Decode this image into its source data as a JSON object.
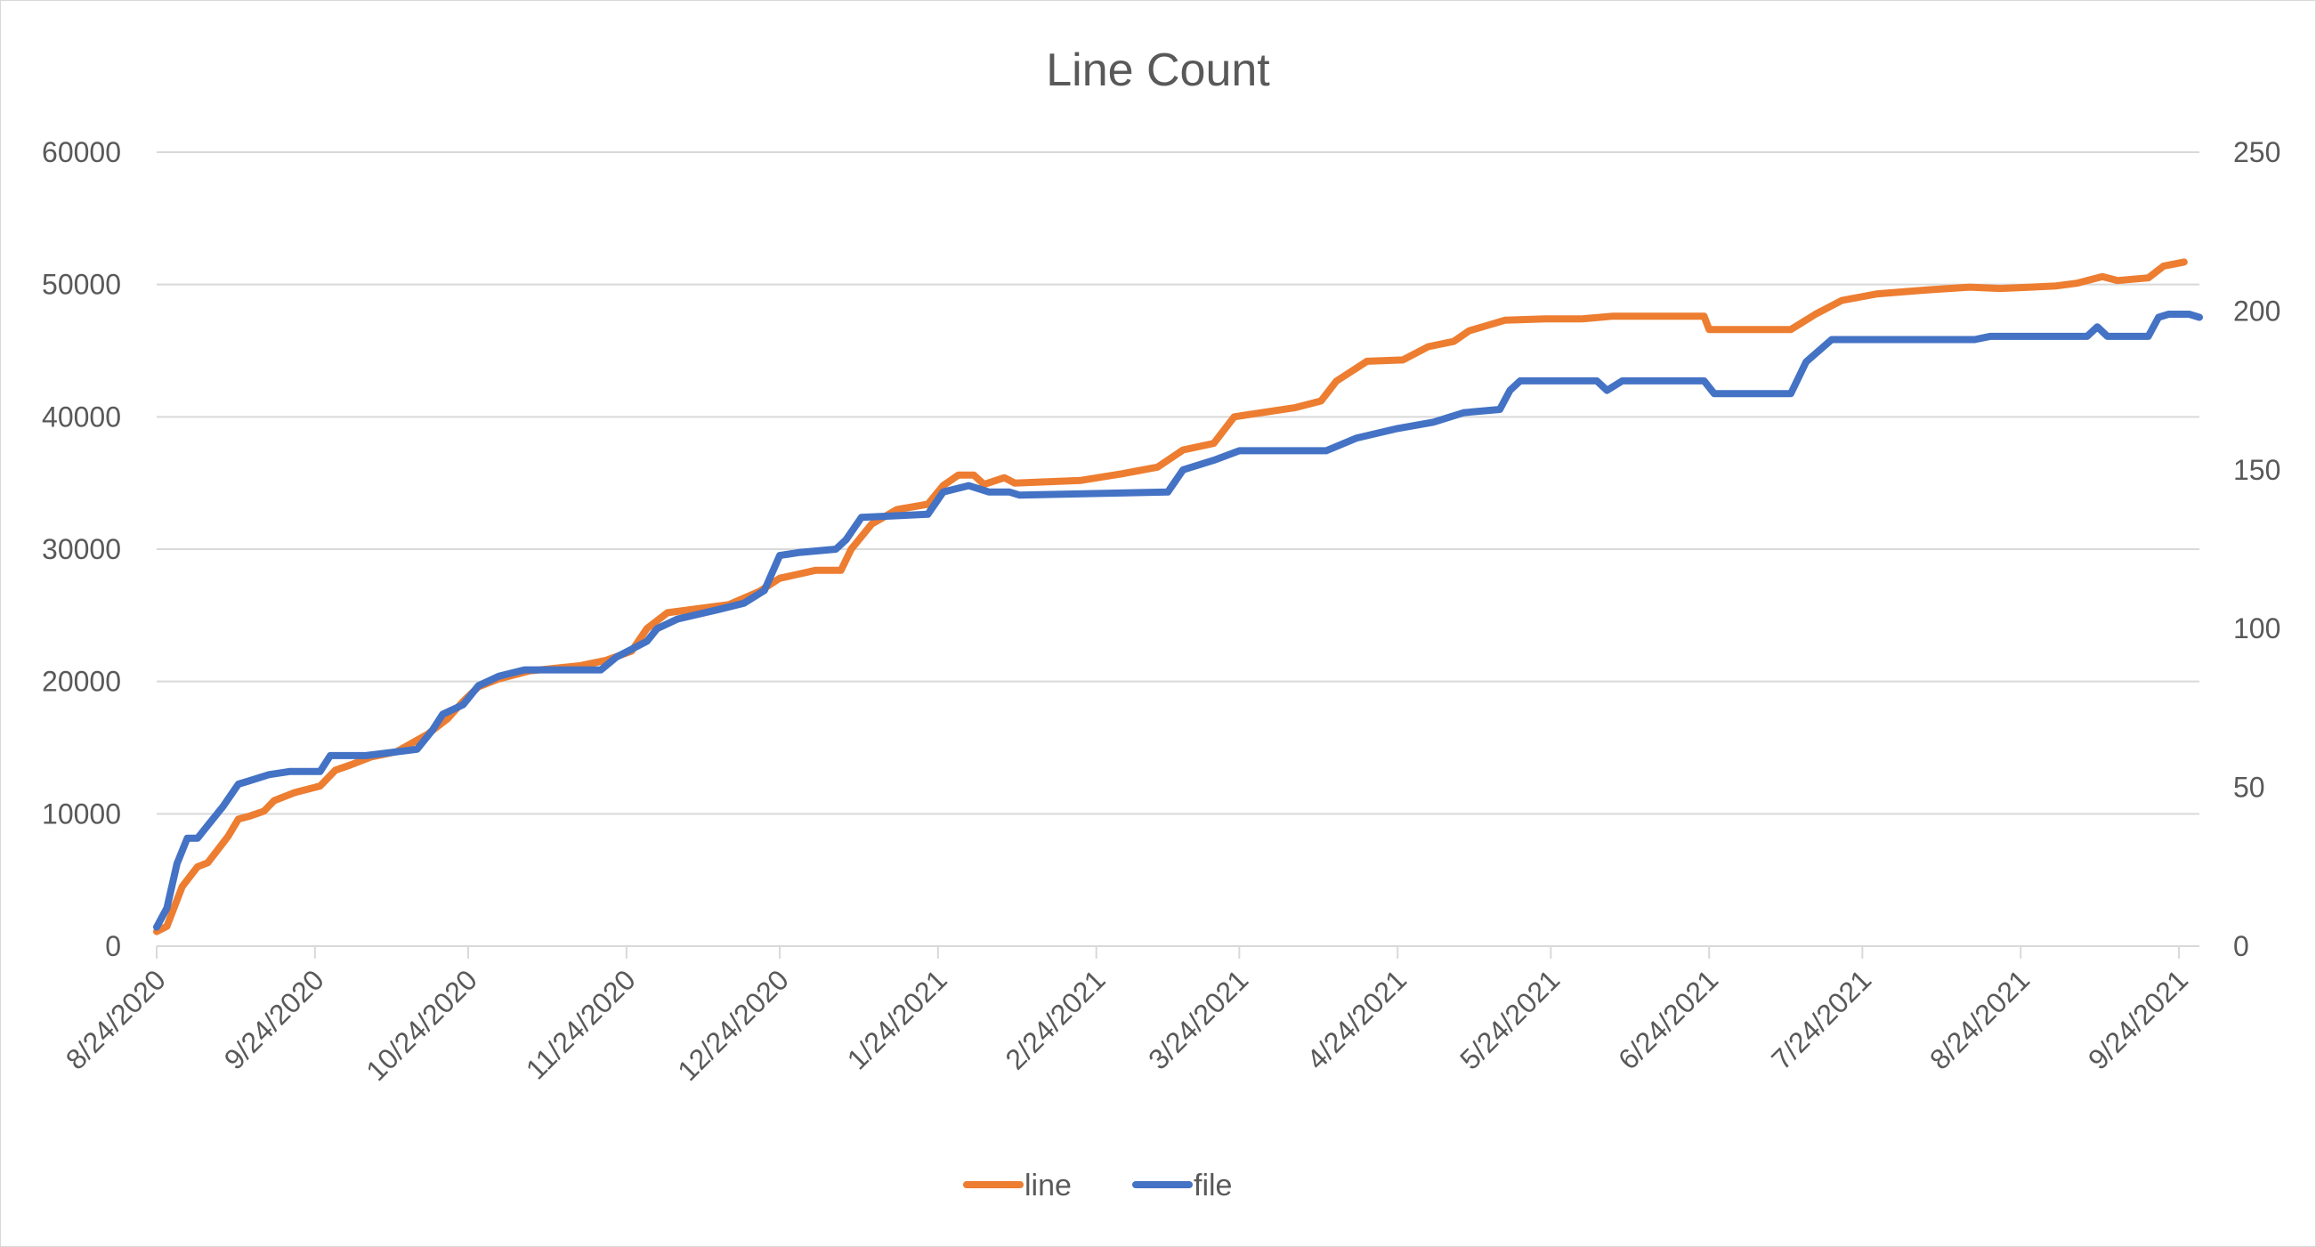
{
  "chart_data": {
    "type": "line",
    "title": "Line Count",
    "xlabel": "",
    "ylabel": "",
    "y2label": "",
    "x_tick_labels": [
      "8/24/2020",
      "9/24/2020",
      "10/24/2020",
      "11/24/2020",
      "12/24/2020",
      "1/24/2021",
      "2/24/2021",
      "3/24/2021",
      "4/24/2021",
      "5/24/2021",
      "6/24/2021",
      "7/24/2021",
      "8/24/2021",
      "9/24/2021"
    ],
    "x_ticks": [
      "2020-08-24",
      "2020-09-24",
      "2020-10-24",
      "2020-11-24",
      "2020-12-24",
      "2021-01-24",
      "2021-02-24",
      "2021-03-24",
      "2021-04-24",
      "2021-05-24",
      "2021-06-24",
      "2021-07-24",
      "2021-08-24",
      "2021-09-24"
    ],
    "xlim": [
      "2020-08-24",
      "2021-09-28"
    ],
    "ylim": [
      0,
      60000
    ],
    "y_ticks": [
      0,
      10000,
      20000,
      30000,
      40000,
      50000,
      60000
    ],
    "y2lim": [
      0,
      250
    ],
    "y2_ticks": [
      0,
      50,
      100,
      150,
      200,
      250
    ],
    "grid": true,
    "legend_position": "bottom",
    "series": [
      {
        "name": "line",
        "axis": "left",
        "color": "#ED7D31",
        "points": [
          [
            "2020-08-24",
            1100
          ],
          [
            "2020-08-26",
            1500
          ],
          [
            "2020-08-29",
            4500
          ],
          [
            "2020-09-01",
            6000
          ],
          [
            "2020-09-03",
            6300
          ],
          [
            "2020-09-07",
            8300
          ],
          [
            "2020-09-09",
            9600
          ],
          [
            "2020-09-11",
            9800
          ],
          [
            "2020-09-14",
            10200
          ],
          [
            "2020-09-16",
            11000
          ],
          [
            "2020-09-20",
            11600
          ],
          [
            "2020-09-25",
            12100
          ],
          [
            "2020-09-28",
            13300
          ],
          [
            "2020-10-01",
            13700
          ],
          [
            "2020-10-05",
            14300
          ],
          [
            "2020-10-10",
            14700
          ],
          [
            "2020-10-16",
            16000
          ],
          [
            "2020-10-20",
            17200
          ],
          [
            "2020-10-23",
            18500
          ],
          [
            "2020-10-26",
            19600
          ],
          [
            "2020-10-30",
            20200
          ],
          [
            "2020-11-05",
            20800
          ],
          [
            "2020-11-15",
            21200
          ],
          [
            "2020-11-20",
            21600
          ],
          [
            "2020-11-25",
            22300
          ],
          [
            "2020-11-28",
            24000
          ],
          [
            "2020-12-02",
            25200
          ],
          [
            "2020-12-06",
            25400
          ],
          [
            "2020-12-14",
            25800
          ],
          [
            "2020-12-20",
            26800
          ],
          [
            "2020-12-24",
            27800
          ],
          [
            "2020-12-31",
            28400
          ],
          [
            "2021-01-05",
            28400
          ],
          [
            "2021-01-07",
            30000
          ],
          [
            "2021-01-11",
            31900
          ],
          [
            "2021-01-16",
            33000
          ],
          [
            "2021-01-22",
            33400
          ],
          [
            "2021-01-25",
            34800
          ],
          [
            "2021-01-28",
            35600
          ],
          [
            "2021-01-31",
            35600
          ],
          [
            "2021-02-02",
            34900
          ],
          [
            "2021-02-06",
            35400
          ],
          [
            "2021-02-08",
            35000
          ],
          [
            "2021-02-21",
            35200
          ],
          [
            "2021-03-01",
            35700
          ],
          [
            "2021-03-08",
            36200
          ],
          [
            "2021-03-13",
            37500
          ],
          [
            "2021-03-19",
            38000
          ],
          [
            "2021-03-23",
            40000
          ],
          [
            "2021-03-28",
            40300
          ],
          [
            "2021-04-04",
            40700
          ],
          [
            "2021-04-09",
            41200
          ],
          [
            "2021-04-12",
            42700
          ],
          [
            "2021-04-18",
            44200
          ],
          [
            "2021-04-25",
            44300
          ],
          [
            "2021-04-30",
            45300
          ],
          [
            "2021-05-05",
            45700
          ],
          [
            "2021-05-08",
            46500
          ],
          [
            "2021-05-15",
            47300
          ],
          [
            "2021-05-23",
            47400
          ],
          [
            "2021-05-30",
            47400
          ],
          [
            "2021-06-05",
            47600
          ],
          [
            "2021-06-23",
            47600
          ],
          [
            "2021-06-24",
            46600
          ],
          [
            "2021-07-10",
            46600
          ],
          [
            "2021-07-15",
            47800
          ],
          [
            "2021-07-20",
            48800
          ],
          [
            "2021-07-27",
            49300
          ],
          [
            "2021-08-06",
            49600
          ],
          [
            "2021-08-14",
            49800
          ],
          [
            "2021-08-20",
            49700
          ],
          [
            "2021-08-26",
            49800
          ],
          [
            "2021-08-31",
            49900
          ],
          [
            "2021-09-04",
            50100
          ],
          [
            "2021-09-09",
            50600
          ],
          [
            "2021-09-12",
            50300
          ],
          [
            "2021-09-18",
            50500
          ],
          [
            "2021-09-21",
            51400
          ],
          [
            "2021-09-25",
            51700
          ]
        ]
      },
      {
        "name": "file",
        "axis": "right",
        "color": "#4472C4",
        "points": [
          [
            "2020-08-24",
            6
          ],
          [
            "2020-08-26",
            12
          ],
          [
            "2020-08-28",
            26
          ],
          [
            "2020-08-30",
            34
          ],
          [
            "2020-09-01",
            34
          ],
          [
            "2020-09-03",
            38
          ],
          [
            "2020-09-06",
            44
          ],
          [
            "2020-09-09",
            51
          ],
          [
            "2020-09-11",
            52
          ],
          [
            "2020-09-15",
            54
          ],
          [
            "2020-09-19",
            55
          ],
          [
            "2020-09-25",
            55
          ],
          [
            "2020-09-27",
            60
          ],
          [
            "2020-10-04",
            60
          ],
          [
            "2020-10-09",
            61
          ],
          [
            "2020-10-14",
            62
          ],
          [
            "2020-10-17",
            68
          ],
          [
            "2020-10-19",
            73
          ],
          [
            "2020-10-23",
            76
          ],
          [
            "2020-10-26",
            82
          ],
          [
            "2020-10-30",
            85
          ],
          [
            "2020-11-04",
            87
          ],
          [
            "2020-11-19",
            87
          ],
          [
            "2020-11-22",
            91
          ],
          [
            "2020-11-28",
            96
          ],
          [
            "2020-11-30",
            100
          ],
          [
            "2020-12-04",
            103
          ],
          [
            "2020-12-12",
            106
          ],
          [
            "2020-12-17",
            108
          ],
          [
            "2020-12-21",
            112
          ],
          [
            "2020-12-24",
            123
          ],
          [
            "2020-12-28",
            124
          ],
          [
            "2021-01-04",
            125
          ],
          [
            "2021-01-06",
            128
          ],
          [
            "2021-01-09",
            135
          ],
          [
            "2021-01-22",
            136
          ],
          [
            "2021-01-25",
            143
          ],
          [
            "2021-01-30",
            145
          ],
          [
            "2021-02-03",
            143
          ],
          [
            "2021-02-07",
            143
          ],
          [
            "2021-02-09",
            142
          ],
          [
            "2021-03-10",
            143
          ],
          [
            "2021-03-13",
            150
          ],
          [
            "2021-03-19",
            153
          ],
          [
            "2021-03-24",
            156
          ],
          [
            "2021-04-10",
            156
          ],
          [
            "2021-04-16",
            160
          ],
          [
            "2021-04-24",
            163
          ],
          [
            "2021-05-01",
            165
          ],
          [
            "2021-05-07",
            168
          ],
          [
            "2021-05-14",
            169
          ],
          [
            "2021-05-16",
            175
          ],
          [
            "2021-05-18",
            178
          ],
          [
            "2021-06-02",
            178
          ],
          [
            "2021-06-04",
            175
          ],
          [
            "2021-06-07",
            178
          ],
          [
            "2021-06-23",
            178
          ],
          [
            "2021-06-25",
            174
          ],
          [
            "2021-07-10",
            174
          ],
          [
            "2021-07-13",
            184
          ],
          [
            "2021-07-18",
            191
          ],
          [
            "2021-08-15",
            191
          ],
          [
            "2021-08-18",
            192
          ],
          [
            "2021-09-06",
            192
          ],
          [
            "2021-09-08",
            195
          ],
          [
            "2021-09-10",
            192
          ],
          [
            "2021-09-18",
            192
          ],
          [
            "2021-09-20",
            198
          ],
          [
            "2021-09-22",
            199
          ],
          [
            "2021-09-26",
            199
          ],
          [
            "2021-09-28",
            198
          ]
        ]
      }
    ]
  }
}
